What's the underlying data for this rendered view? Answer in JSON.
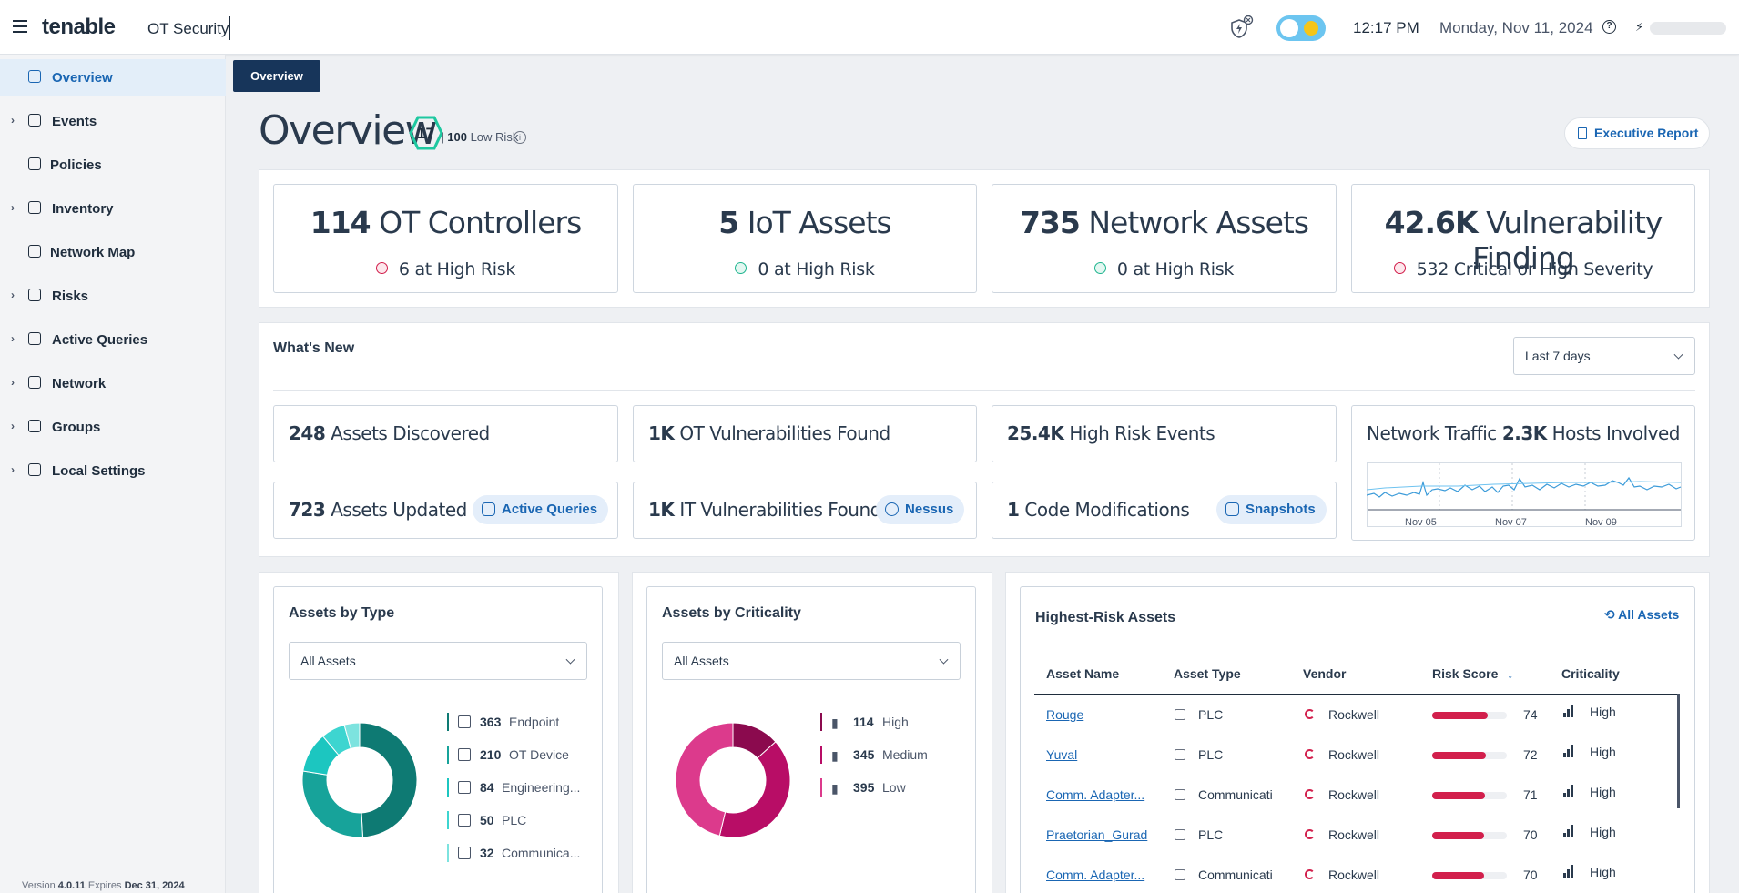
{
  "app": {
    "logo": "tenable",
    "product": "OT Security",
    "time": "12:17 PM",
    "date": "Monday, Nov 11, 2024"
  },
  "sidebar": {
    "items": [
      {
        "label": "Overview",
        "icon": "dashboard-icon",
        "expandable": false,
        "active": true
      },
      {
        "label": "Events",
        "icon": "bell-icon",
        "expandable": true
      },
      {
        "label": "Policies",
        "icon": "policy-icon",
        "expandable": false
      },
      {
        "label": "Inventory",
        "icon": "list-icon",
        "expandable": true
      },
      {
        "label": "Network Map",
        "icon": "network-map-icon",
        "expandable": false
      },
      {
        "label": "Risks",
        "icon": "shield-icon",
        "expandable": true
      },
      {
        "label": "Active Queries",
        "icon": "query-shield-icon",
        "expandable": true
      },
      {
        "label": "Network",
        "icon": "network-icon",
        "expandable": true
      },
      {
        "label": "Groups",
        "icon": "users-icon",
        "expandable": true
      },
      {
        "label": "Local Settings",
        "icon": "settings-icon",
        "expandable": true
      }
    ],
    "version_prefix": "Version",
    "version": "4.0.11",
    "expires_prefix": "Expires",
    "expires": "Dec 31, 2024"
  },
  "breadcrumb": "Overview",
  "header": {
    "title": "Overview",
    "score": "17",
    "score_max": "| 100",
    "score_label": "Low Risk",
    "exec_report": "Executive Report"
  },
  "kpis": [
    {
      "num": "114",
      "label": "OT Controllers",
      "sub": "6 at High Risk",
      "status": "red"
    },
    {
      "num": "5",
      "label": "IoT Assets",
      "sub": "0 at High Risk",
      "status": "green"
    },
    {
      "num": "735",
      "label": "Network Assets",
      "sub": "0 at High Risk",
      "status": "green"
    },
    {
      "num": "42.6K",
      "label": "Vulnerability Finding",
      "sub": "532 Critical or High Severity",
      "status": "red"
    }
  ],
  "whats_new": {
    "title": "What's New",
    "range": "Last 7 days",
    "cards": [
      {
        "num": "248",
        "label": "Assets Discovered",
        "badge": ""
      },
      {
        "num": "1K",
        "label": "OT Vulnerabilities Found",
        "badge": ""
      },
      {
        "num": "25.4K",
        "label": "High Risk Events",
        "badge": ""
      },
      {
        "num": "723",
        "label": "Assets Updated",
        "badge": "Active Queries"
      },
      {
        "num": "1K",
        "label": "IT Vulnerabilities Found",
        "badge": "Nessus"
      },
      {
        "num": "1",
        "label": "Code Modifications",
        "badge": "Snapshots"
      }
    ],
    "traffic": {
      "title": "Network Traffic",
      "hosts_num": "2.3K",
      "hosts_label": "Hosts Involved",
      "ticks": [
        "Nov 05",
        "Nov 07",
        "Nov 09"
      ]
    }
  },
  "assets_by_type": {
    "title": "Assets by Type",
    "filter": "All Assets",
    "legend": [
      {
        "value": "363",
        "name": "Endpoint",
        "color": "#0e7a73",
        "icon": "cube-icon"
      },
      {
        "value": "210",
        "name": "OT Device",
        "color": "#17a39a",
        "icon": "device-icon"
      },
      {
        "value": "84",
        "name": "Engineering...",
        "color": "#1cc6c0",
        "icon": "workstation-icon"
      },
      {
        "value": "50",
        "name": "PLC",
        "color": "#3dd5d0",
        "icon": "plc-icon"
      },
      {
        "value": "32",
        "name": "Communica...",
        "color": "#7de3df",
        "icon": "comm-icon"
      }
    ],
    "chart_data": {
      "type": "pie",
      "categories": [
        "Endpoint",
        "OT Device",
        "Engineering...",
        "PLC",
        "Communica..."
      ],
      "values": [
        363,
        210,
        84,
        50,
        32
      ]
    }
  },
  "assets_by_criticality": {
    "title": "Assets by Criticality",
    "filter": "All Assets",
    "legend": [
      {
        "value": "114",
        "name": "High",
        "color": "#8b0a4e"
      },
      {
        "value": "345",
        "name": "Medium",
        "color": "#b80d66"
      },
      {
        "value": "395",
        "name": "Low",
        "color": "#dc3a8c"
      }
    ],
    "chart_data": {
      "type": "pie",
      "categories": [
        "High",
        "Medium",
        "Low"
      ],
      "values": [
        114,
        345,
        395
      ]
    }
  },
  "highest_risk": {
    "title": "Highest-Risk Assets",
    "all_assets": "All Assets",
    "columns": [
      "Asset Name",
      "Asset Type",
      "Vendor",
      "Risk Score",
      "Criticality"
    ],
    "rows": [
      {
        "name": "Rouge",
        "type": "PLC",
        "vendor": "Rockwell",
        "score": "74",
        "crit": "High"
      },
      {
        "name": "Yuval",
        "type": "PLC",
        "vendor": "Rockwell",
        "score": "72",
        "crit": "High"
      },
      {
        "name": "Comm. Adapter...",
        "type": "Communicati",
        "vendor": "Rockwell",
        "score": "71",
        "crit": "High"
      },
      {
        "name": "Praetorian_Gurad",
        "type": "PLC",
        "vendor": "Rockwell",
        "score": "70",
        "crit": "High"
      },
      {
        "name": "Comm. Adapter...",
        "type": "Communicati",
        "vendor": "Rockwell",
        "score": "70",
        "crit": "High"
      }
    ]
  }
}
